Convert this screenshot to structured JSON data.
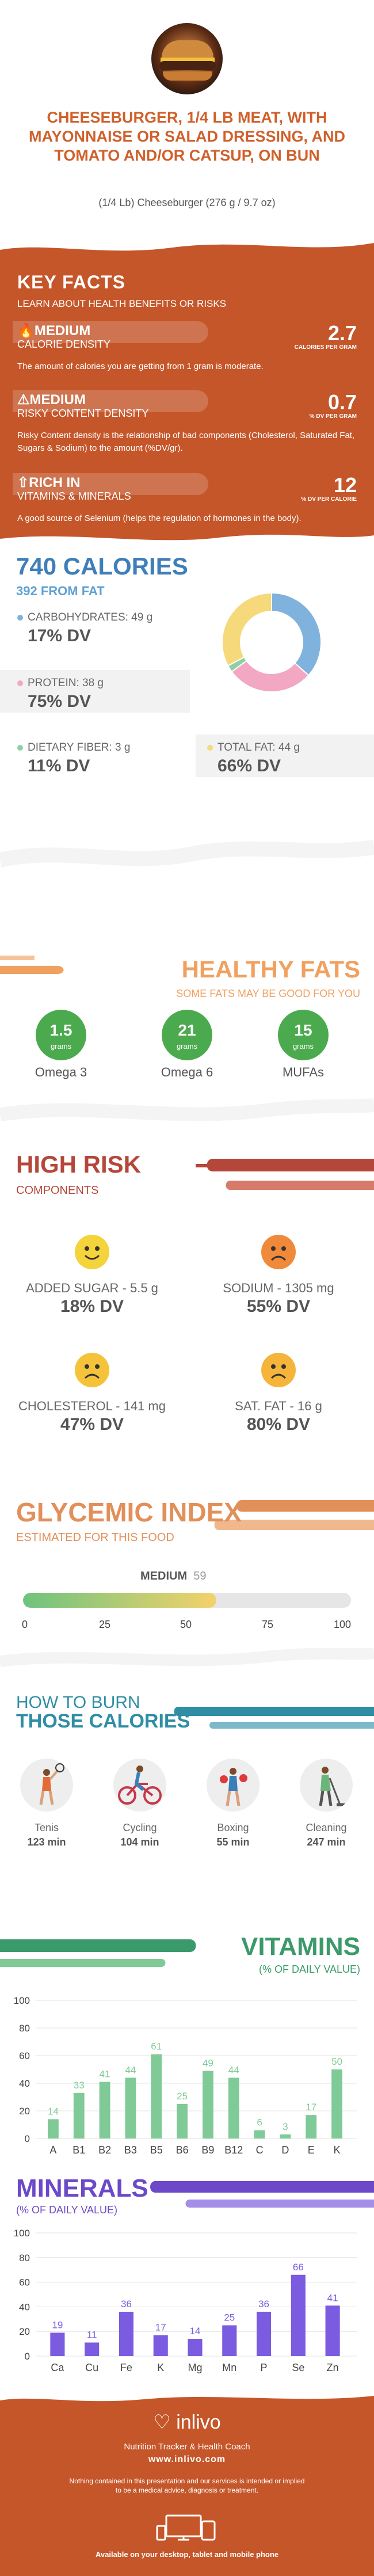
{
  "header": {
    "title": "CHEESEBURGER, 1/4 LB MEAT, WITH MAYONNAISE OR SALAD DRESSING, AND TOMATO AND/OR CATSUP, ON BUN",
    "serving": "(1/4 Lb) Cheeseburger (276 g / 9.7 oz)"
  },
  "key_facts": {
    "title": "KEY FACTS",
    "lead": "LEARN ABOUT HEALTH BENEFITS OR RISKS",
    "facts": [
      {
        "level": "MEDIUM",
        "name": "CALORIE DENSITY",
        "value": "2.7",
        "unit": "CALORIES PER GRAM",
        "desc": "The amount of calories you are getting from 1 gram is moderate.",
        "icon": "flame-icon"
      },
      {
        "level": "MEDIUM",
        "name": "RISKY CONTENT DENSITY",
        "value": "0.7",
        "unit": "% DV PER GRAM",
        "desc": "Risky Content density is the relationship of bad components (Cholesterol, Saturated Fat, Sugars & Sodium) to the amount (%DV/gr).",
        "icon": "warning-icon"
      },
      {
        "level": "RICH IN",
        "name": "VITAMINS & MINERALS",
        "value": "12",
        "unit": "% DV PER CALORIE",
        "desc": "A good source of Selenium (helps the regulation of hormones in the body).",
        "icon": "arrow-up-icon"
      }
    ]
  },
  "calories": {
    "total": "740 CALORIES",
    "from_fat": "392 FROM FAT",
    "macros": [
      {
        "label": "CARBOHYDRATES: 49 g",
        "dv": "17% DV",
        "color": "#7fb3de"
      },
      {
        "label": "PROTEIN: 38 g",
        "dv": "75% DV",
        "color": "#f2a7c3"
      },
      {
        "label": "DIETARY FIBER: 3 g",
        "dv": "11% DV",
        "color": "#8fcfa6"
      },
      {
        "label": "TOTAL FAT: 44 g",
        "dv": "66% DV",
        "color": "#f5d97a"
      }
    ],
    "donut": [
      {
        "name": "Carbohydrates",
        "grams": 49,
        "color": "#7fb3de"
      },
      {
        "name": "Protein",
        "grams": 38,
        "color": "#f2a7c3"
      },
      {
        "name": "Dietary Fiber",
        "grams": 3,
        "color": "#8fcfa6"
      },
      {
        "name": "Total Fat",
        "grams": 44,
        "color": "#f5d97a"
      }
    ]
  },
  "healthy_fats": {
    "title": "HEALTHY FATS",
    "subtitle": "SOME FATS MAY BE GOOD FOR YOU",
    "items": [
      {
        "value": "1.5",
        "unit": "grams",
        "name": "Omega 3"
      },
      {
        "value": "21",
        "unit": "grams",
        "name": "Omega 6"
      },
      {
        "value": "15",
        "unit": "grams",
        "name": "MUFAs"
      }
    ]
  },
  "high_risk": {
    "title": "HIGH RISK",
    "subtitle": "COMPONENTS",
    "items": [
      {
        "label": "ADDED SUGAR - 5.5 g",
        "dv": "18% DV",
        "face": "happy-face-icon",
        "color": "#f5d33a"
      },
      {
        "label": "SODIUM - 1305 mg",
        "dv": "55% DV",
        "face": "sad-face-icon",
        "color": "#f08a3a"
      },
      {
        "label": "CHOLESTEROL - 141 mg",
        "dv": "47% DV",
        "face": "sad-face-icon",
        "color": "#f5c33a"
      },
      {
        "label": "SAT. FAT - 16 g",
        "dv": "80% DV",
        "face": "sad-face-icon",
        "color": "#f5b53a"
      }
    ]
  },
  "glycemic": {
    "title": "GLYCEMIC INDEX",
    "subtitle": "ESTIMATED FOR THIS FOOD",
    "level": "MEDIUM",
    "value": "59",
    "fraction": 0.59,
    "ticks": [
      "0",
      "25",
      "50",
      "75",
      "100"
    ]
  },
  "burn": {
    "title_line1": "HOW TO BURN",
    "title_line2": "THOSE CALORIES",
    "activities": [
      {
        "name": "Tenis",
        "minutes": "123 min",
        "icon": "tennis-player-icon"
      },
      {
        "name": "Cycling",
        "minutes": "104 min",
        "icon": "cyclist-icon"
      },
      {
        "name": "Boxing",
        "minutes": "55 min",
        "icon": "boxer-icon"
      },
      {
        "name": "Cleaning",
        "minutes": "247 min",
        "icon": "cleaning-icon"
      }
    ]
  },
  "vitamins": {
    "title": "VITAMINS",
    "subtitle": "(% OF DAILY VALUE)",
    "color": "#7fca96",
    "chart_data": {
      "type": "bar",
      "categories": [
        "A",
        "B1",
        "B2",
        "B3",
        "B5",
        "B6",
        "B9",
        "B12",
        "C",
        "D",
        "E",
        "K"
      ],
      "values": [
        14,
        33,
        41,
        44,
        61,
        25,
        49,
        44,
        6,
        3,
        17,
        50
      ],
      "ylim": [
        0,
        100
      ],
      "yticks": [
        "0",
        "20",
        "40",
        "60",
        "80",
        "100"
      ]
    }
  },
  "minerals": {
    "title": "MINERALS",
    "subtitle": "(% OF DAILY VALUE)",
    "color": "#7b5be0",
    "chart_data": {
      "type": "bar",
      "categories": [
        "Ca",
        "Cu",
        "Fe",
        "K",
        "Mg",
        "Mn",
        "P",
        "Se",
        "Zn"
      ],
      "values": [
        19,
        11,
        36,
        17,
        14,
        25,
        36,
        66,
        41
      ],
      "ylim": [
        0,
        100
      ],
      "yticks": [
        "0",
        "20",
        "40",
        "60",
        "80",
        "100"
      ]
    }
  },
  "footer": {
    "logo": "inlivo",
    "tagline": "Nutrition Tracker & Health Coach",
    "url": "www.inlivo.com",
    "disclaimer": "Nothing contained in this presentation and our services is intended or implied to be a medical advice, diagnosis or treatment.",
    "devices": "Available on your desktop, tablet and mobile phone"
  }
}
